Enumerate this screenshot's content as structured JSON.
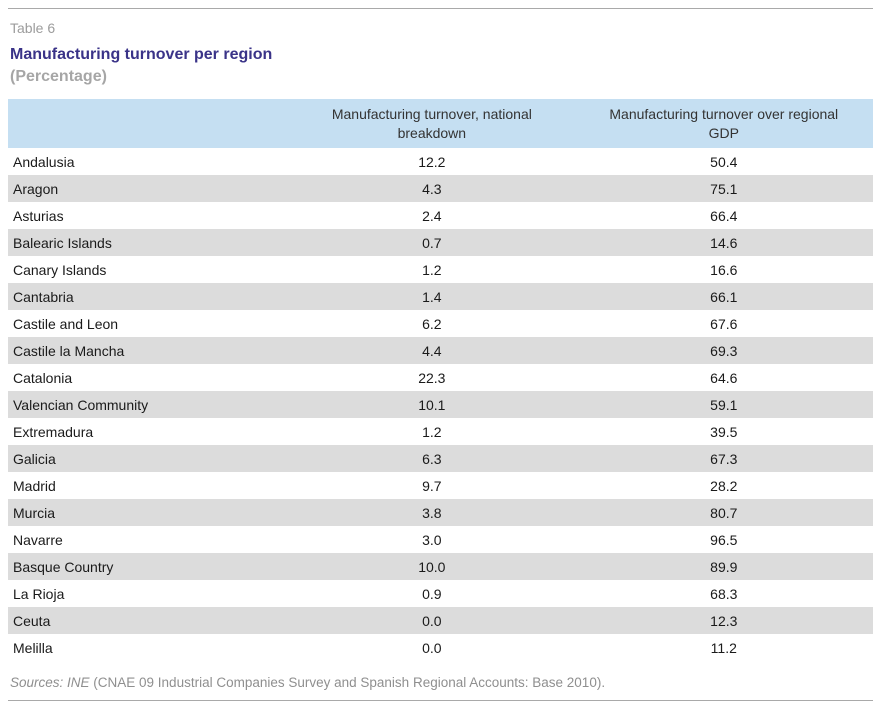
{
  "table_label": "Table 6",
  "title": "Manufacturing turnover per region",
  "subtitle": "(Percentage)",
  "colors": {
    "header_background": "#c5dff2",
    "alt_row_background": "#dcdcdc",
    "title_text": "#3a3388",
    "muted_text": "#9c9c9c",
    "rule": "#a9a9a9"
  },
  "table": {
    "headers": [
      "",
      "Manufacturing turnover, national breakdown",
      "Manufacturing turnover over regional GDP"
    ],
    "rows": [
      {
        "region": "Andalusia",
        "national_breakdown": "12.2",
        "regional_gdp": "50.4"
      },
      {
        "region": "Aragon",
        "national_breakdown": "4.3",
        "regional_gdp": "75.1"
      },
      {
        "region": "Asturias",
        "national_breakdown": "2.4",
        "regional_gdp": "66.4"
      },
      {
        "region": "Balearic Islands",
        "national_breakdown": "0.7",
        "regional_gdp": "14.6"
      },
      {
        "region": "Canary Islands",
        "national_breakdown": "1.2",
        "regional_gdp": "16.6"
      },
      {
        "region": "Cantabria",
        "national_breakdown": "1.4",
        "regional_gdp": "66.1"
      },
      {
        "region": "Castile and Leon",
        "national_breakdown": "6.2",
        "regional_gdp": "67.6"
      },
      {
        "region": "Castile la Mancha",
        "national_breakdown": "4.4",
        "regional_gdp": "69.3"
      },
      {
        "region": "Catalonia",
        "national_breakdown": "22.3",
        "regional_gdp": "64.6"
      },
      {
        "region": "Valencian Community",
        "national_breakdown": "10.1",
        "regional_gdp": "59.1"
      },
      {
        "region": "Extremadura",
        "national_breakdown": "1.2",
        "regional_gdp": "39.5"
      },
      {
        "region": "Galicia",
        "national_breakdown": "6.3",
        "regional_gdp": "67.3"
      },
      {
        "region": "Madrid",
        "national_breakdown": "9.7",
        "regional_gdp": "28.2"
      },
      {
        "region": "Murcia",
        "national_breakdown": "3.8",
        "regional_gdp": "80.7"
      },
      {
        "region": "Navarre",
        "national_breakdown": "3.0",
        "regional_gdp": "96.5"
      },
      {
        "region": "Basque Country",
        "national_breakdown": "10.0",
        "regional_gdp": "89.9"
      },
      {
        "region": "La Rioja",
        "national_breakdown": "0.9",
        "regional_gdp": "68.3"
      },
      {
        "region": "Ceuta",
        "national_breakdown": "0.0",
        "regional_gdp": "12.3"
      },
      {
        "region": "Melilla",
        "national_breakdown": "0.0",
        "regional_gdp": "11.2"
      }
    ]
  },
  "footer": {
    "sources_italic": "Sources: INE",
    "sources_rest": " (CNAE 09 Industrial Companies Survey and Spanish Regional Accounts: Base 2010)."
  }
}
